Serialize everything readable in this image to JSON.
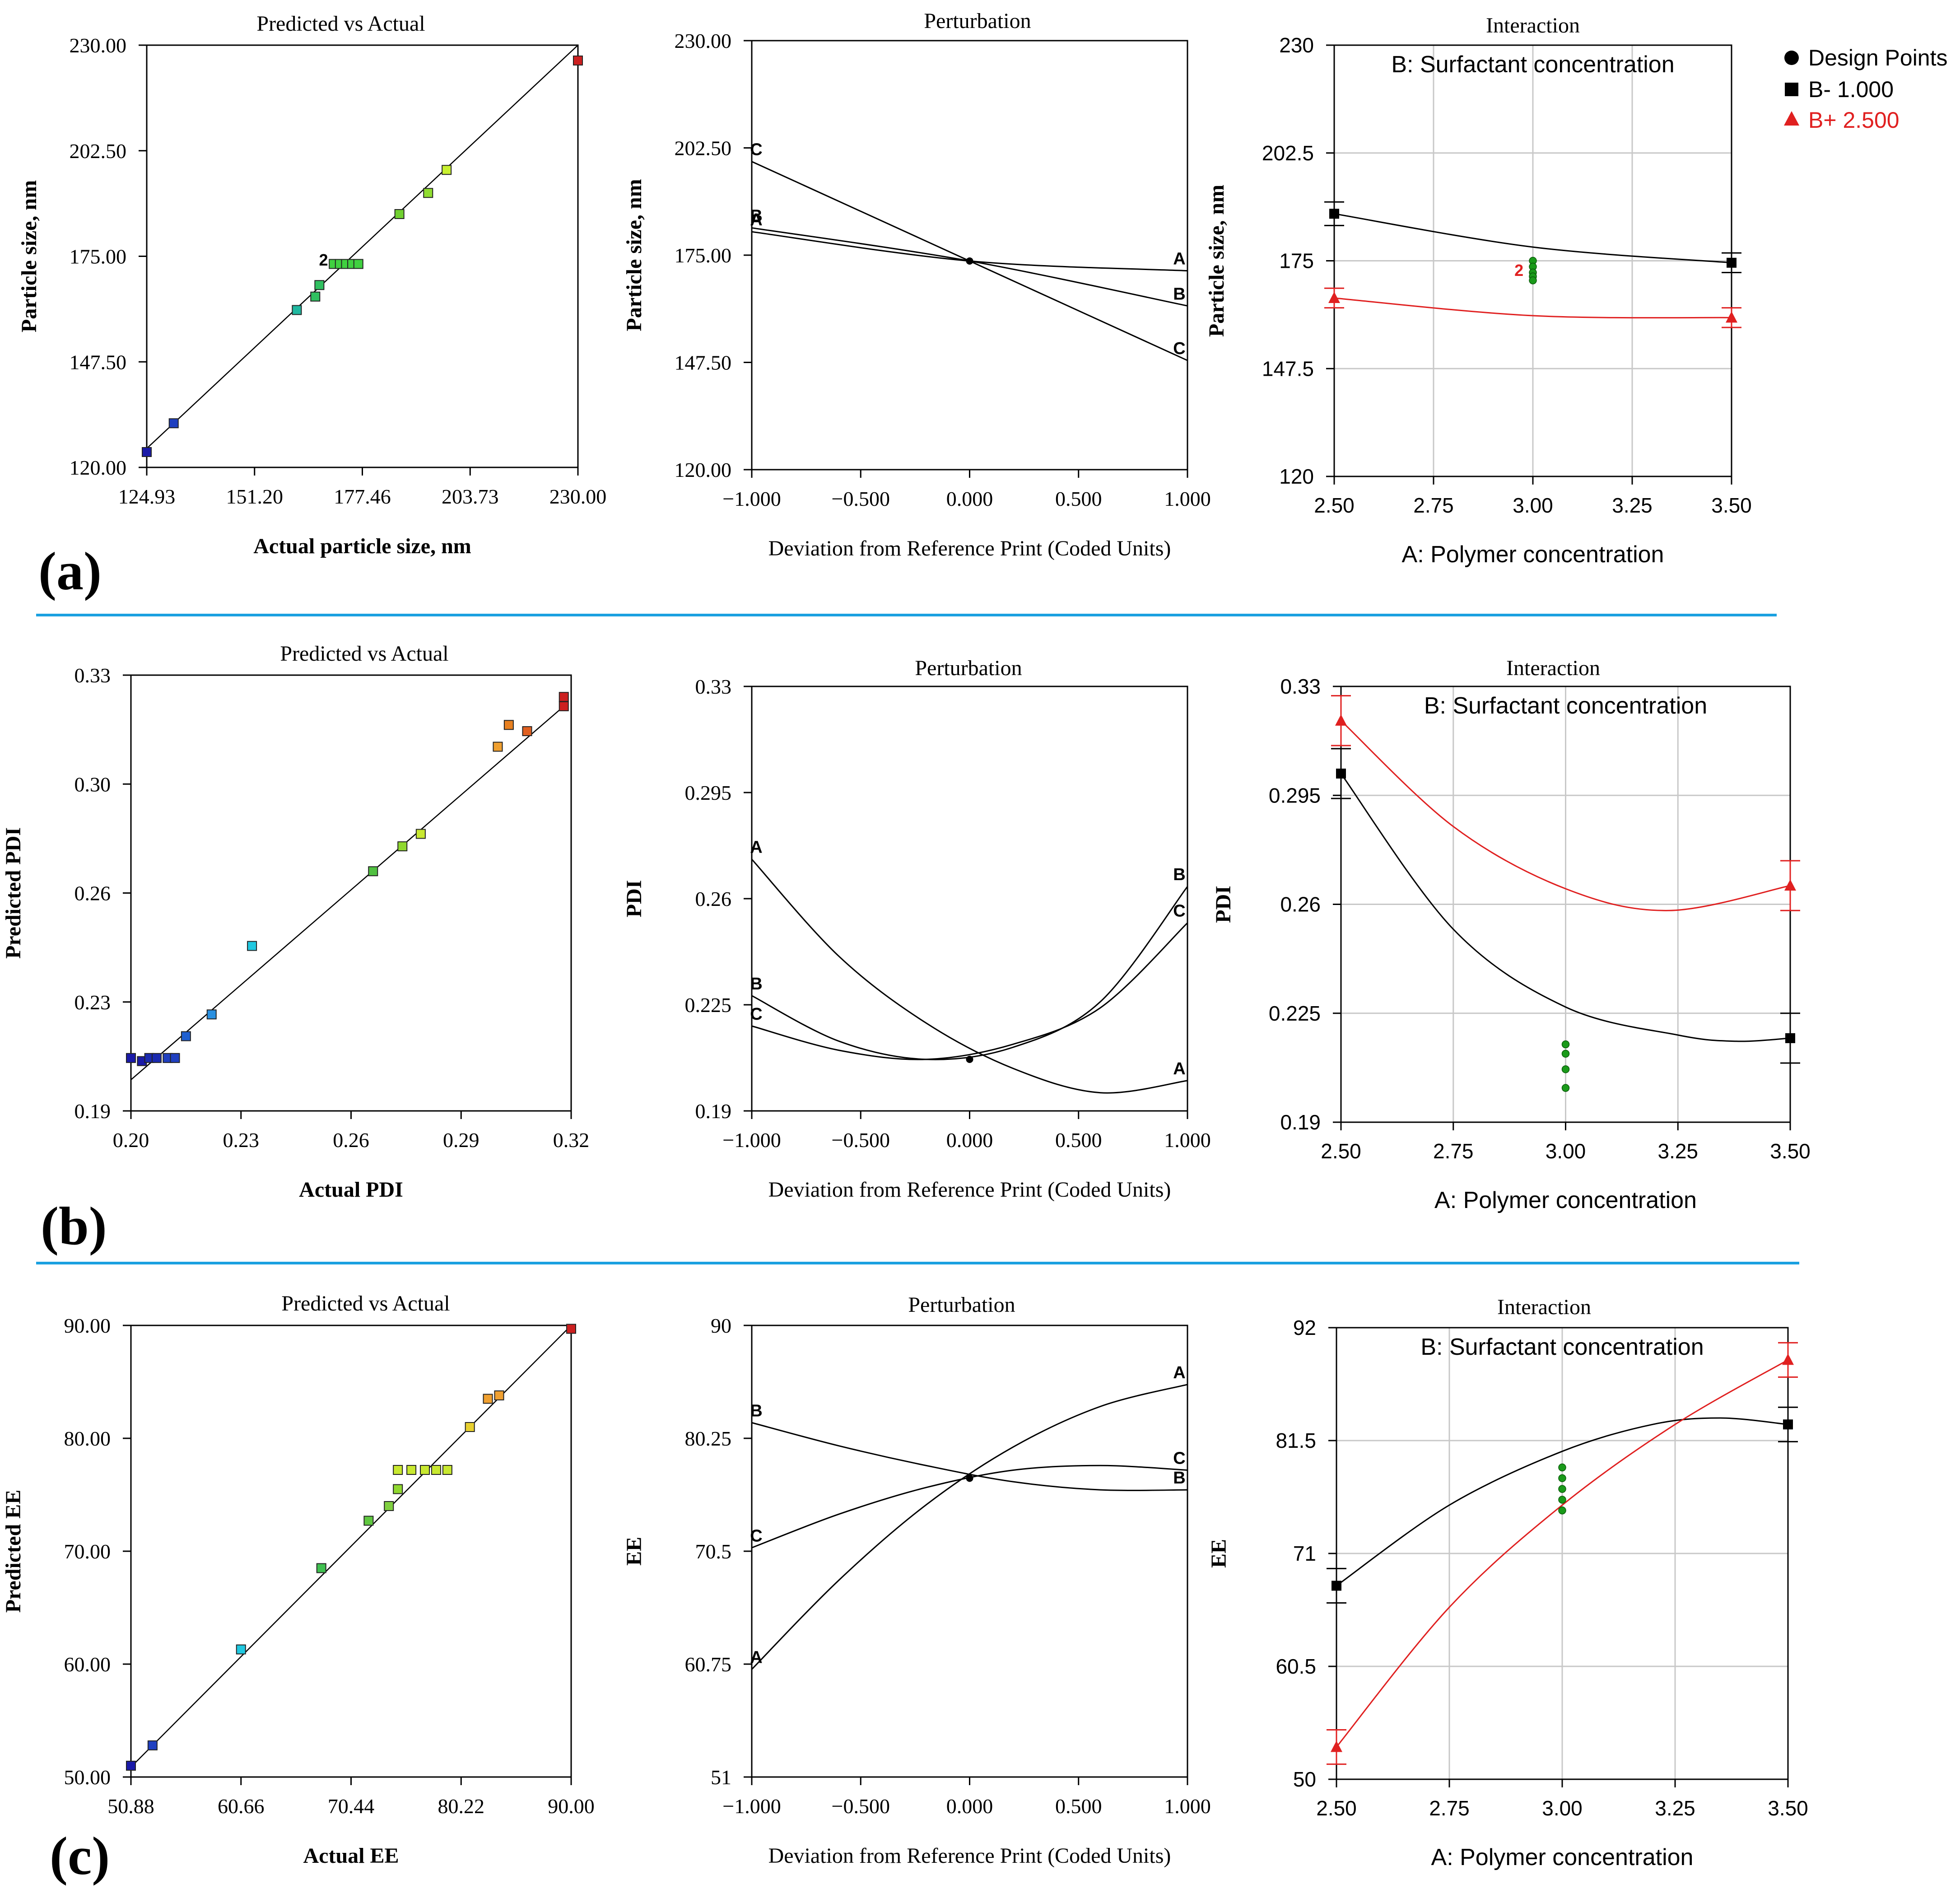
{
  "panel_labels": [
    "(a)",
    "(b)",
    "(c)"
  ],
  "legend": {
    "entries": [
      {
        "label": "Design Points",
        "color": "#000000",
        "marker": "circle"
      },
      {
        "label": "B- 1.000",
        "color": "#000000",
        "marker": "square"
      },
      {
        "label": "B+ 2.500",
        "color": "#e02020",
        "marker": "triangle"
      }
    ]
  },
  "chart_data": [
    {
      "id": "a-pva",
      "type": "scatter",
      "style": "pva",
      "title": "Predicted vs Actual",
      "xlabel": "Actual particle size, nm",
      "ylabel": "Particle size, nm",
      "xlim": [
        124.93,
        230.0
      ],
      "ylim": [
        120.0,
        230.0
      ],
      "xticks": [
        "124.93",
        "151.20",
        "177.46",
        "203.73",
        "230.00"
      ],
      "yticks": [
        "120.00",
        "147.50",
        "175.00",
        "202.50",
        "230.00"
      ],
      "line": [
        [
          124.93,
          124.93
        ],
        [
          230.0,
          230.0
        ]
      ],
      "points": [
        {
          "x": 124.93,
          "y": 124.0,
          "c": "#1a1aa8"
        },
        {
          "x": 131.5,
          "y": 131.5,
          "c": "#1f3fc0"
        },
        {
          "x": 161.5,
          "y": 161.0,
          "c": "#20b8a0"
        },
        {
          "x": 166.0,
          "y": 164.5,
          "c": "#30c060"
        },
        {
          "x": 167.0,
          "y": 167.5,
          "c": "#30c060"
        },
        {
          "x": 170.5,
          "y": 173.0,
          "c": "#40d040"
        },
        {
          "x": 172.0,
          "y": 173.0,
          "c": "#40d040"
        },
        {
          "x": 173.5,
          "y": 173.0,
          "c": "#40d040"
        },
        {
          "x": 175.0,
          "y": 173.0,
          "c": "#40d040"
        },
        {
          "x": 176.5,
          "y": 173.0,
          "c": "#40d040"
        },
        {
          "x": 186.5,
          "y": 186.0,
          "c": "#70d030"
        },
        {
          "x": 193.5,
          "y": 191.5,
          "c": "#90dd30"
        },
        {
          "x": 198.0,
          "y": 197.5,
          "c": "#c8f030"
        },
        {
          "x": 230.0,
          "y": 226.0,
          "c": "#cc2020"
        }
      ],
      "annotations": [
        {
          "text": "2",
          "x": 168.0,
          "y": 174.0
        }
      ]
    },
    {
      "id": "a-pert",
      "type": "line",
      "style": "pert",
      "title": "Perturbation",
      "xlabel": "Deviation from Reference Print (Coded Units)",
      "ylabel": "Particle size, nm",
      "xlim": [
        -1.0,
        1.0
      ],
      "ylim": [
        120.0,
        230.0
      ],
      "xticks": [
        "−1.000",
        "−0.500",
        "0.000",
        "0.500",
        "1.000"
      ],
      "yticks": [
        "120.00",
        "147.50",
        "175.00",
        "202.50",
        "230.00"
      ],
      "series": [
        {
          "name": "A",
          "x": [
            -1.0,
            0.0,
            1.0
          ],
          "y": [
            181.0,
            173.5,
            171.0
          ],
          "label_left": true,
          "label_right": true
        },
        {
          "name": "B",
          "x": [
            -1.0,
            0.0,
            1.0
          ],
          "y": [
            182.0,
            173.5,
            162.0
          ],
          "label_left": true,
          "label_right": true
        },
        {
          "name": "C",
          "x": [
            -1.0,
            0.0,
            1.0
          ],
          "y": [
            199.0,
            173.5,
            148.0
          ],
          "label_left": true,
          "label_right": true
        }
      ],
      "center": [
        0.0,
        173.5
      ]
    },
    {
      "id": "a-int",
      "type": "line",
      "style": "int",
      "title": "Interaction",
      "subtitle": "B: Surfactant concentration",
      "xlabel": "A: Polymer concentration",
      "ylabel": "Particle size, nm",
      "xlim": [
        2.5,
        3.5
      ],
      "ylim": [
        120.0,
        230.0
      ],
      "xticks": [
        "2.50",
        "2.75",
        "3.00",
        "3.25",
        "3.50"
      ],
      "yticks": [
        "120",
        "147.5",
        "175",
        "202.5",
        "230"
      ],
      "grid": true,
      "series": [
        {
          "name": "B- 1.000",
          "color": "#000000",
          "marker": "square",
          "x": [
            2.5,
            3.0,
            3.5
          ],
          "y": [
            187.0,
            178.5,
            174.5
          ],
          "ends": [
            [
              2.5,
              187.0,
              3.0
            ],
            [
              3.5,
              174.5,
              2.5
            ]
          ]
        },
        {
          "name": "B+ 2.500",
          "color": "#e02020",
          "marker": "triangle",
          "x": [
            2.5,
            3.0,
            3.5
          ],
          "y": [
            165.5,
            161.0,
            160.5
          ],
          "ends": [
            [
              2.5,
              165.5,
              2.5
            ],
            [
              3.5,
              160.5,
              2.5
            ]
          ]
        }
      ],
      "design_points": [
        [
          3.0,
          175.0
        ],
        [
          3.0,
          173.5
        ],
        [
          3.0,
          172.0
        ],
        [
          3.0,
          171.0
        ],
        [
          3.0,
          170.0
        ]
      ],
      "annotations": [
        {
          "text": "2",
          "x": 2.965,
          "y": 172.5,
          "color": "#e02020"
        }
      ]
    },
    {
      "id": "b-pva",
      "type": "scatter",
      "style": "pva",
      "title": "Predicted vs Actual",
      "xlabel": "Actual PDI",
      "ylabel": "Predicted PDI",
      "xlim": [
        0.2,
        0.32
      ],
      "ylim": [
        0.19,
        0.33
      ],
      "xticks": [
        "0.20",
        "0.23",
        "0.26",
        "0.29",
        "0.32"
      ],
      "yticks": [
        "0.19",
        "0.23",
        "0.26",
        "0.30",
        "0.33"
      ],
      "line": [
        [
          0.2,
          0.2
        ],
        [
          0.318,
          0.32
        ]
      ],
      "points": [
        {
          "x": 0.2,
          "y": 0.207,
          "c": "#1a1aa8"
        },
        {
          "x": 0.203,
          "y": 0.206,
          "c": "#1a1aa8"
        },
        {
          "x": 0.205,
          "y": 0.207,
          "c": "#1a2ab0"
        },
        {
          "x": 0.207,
          "y": 0.207,
          "c": "#1a2ab0"
        },
        {
          "x": 0.21,
          "y": 0.207,
          "c": "#2040c0"
        },
        {
          "x": 0.212,
          "y": 0.207,
          "c": "#2040c0"
        },
        {
          "x": 0.215,
          "y": 0.214,
          "c": "#2060d0"
        },
        {
          "x": 0.222,
          "y": 0.221,
          "c": "#2a90e0"
        },
        {
          "x": 0.233,
          "y": 0.243,
          "c": "#20c8e0"
        },
        {
          "x": 0.266,
          "y": 0.267,
          "c": "#50c040"
        },
        {
          "x": 0.274,
          "y": 0.275,
          "c": "#90d830"
        },
        {
          "x": 0.279,
          "y": 0.279,
          "c": "#c8e830"
        },
        {
          "x": 0.3,
          "y": 0.307,
          "c": "#f0a030"
        },
        {
          "x": 0.303,
          "y": 0.314,
          "c": "#e88020"
        },
        {
          "x": 0.308,
          "y": 0.312,
          "c": "#e06020"
        },
        {
          "x": 0.318,
          "y": 0.323,
          "c": "#cc2020"
        },
        {
          "x": 0.318,
          "y": 0.32,
          "c": "#cc2020"
        }
      ]
    },
    {
      "id": "b-pert",
      "type": "line",
      "style": "pert",
      "title": "Perturbation",
      "xlabel": "Deviation from Reference Print (Coded Units)",
      "ylabel": "PDI",
      "xlim": [
        -1.0,
        1.0
      ],
      "ylim": [
        0.19,
        0.33
      ],
      "xticks": [
        "−1.000",
        "−0.500",
        "0.000",
        "0.500",
        "1.000"
      ],
      "yticks": [
        "0.19",
        "0.225",
        "0.26",
        "0.295",
        "0.33"
      ],
      "series": [
        {
          "name": "A",
          "x": [
            -1.0,
            -0.6,
            -0.2,
            0.2,
            0.6,
            1.0
          ],
          "y": [
            0.273,
            0.241,
            0.219,
            0.204,
            0.196,
            0.2
          ],
          "label_left": true,
          "label_right": true
        },
        {
          "name": "B",
          "x": [
            -1.0,
            -0.6,
            -0.2,
            0.2,
            0.6,
            1.0
          ],
          "y": [
            0.228,
            0.213,
            0.207,
            0.211,
            0.226,
            0.264
          ],
          "label_left": true,
          "label_right": true
        },
        {
          "name": "C",
          "x": [
            -1.0,
            -0.6,
            -0.2,
            0.2,
            0.6,
            1.0
          ],
          "y": [
            0.218,
            0.21,
            0.207,
            0.212,
            0.224,
            0.252
          ],
          "label_left": true,
          "label_right": true
        }
      ],
      "center": [
        0.0,
        0.207
      ]
    },
    {
      "id": "b-int",
      "type": "line",
      "style": "int",
      "title": "Interaction",
      "subtitle": "B: Surfactant concentration",
      "xlabel": "A: Polymer concentration",
      "ylabel": "PDI",
      "xlim": [
        2.5,
        3.5
      ],
      "ylim": [
        0.19,
        0.33
      ],
      "xticks": [
        "2.50",
        "2.75",
        "3.00",
        "3.25",
        "3.50"
      ],
      "yticks": [
        "0.19",
        "0.225",
        "0.26",
        "0.295",
        "0.33"
      ],
      "grid": true,
      "series": [
        {
          "name": "B- 1.000",
          "color": "#000000",
          "marker": "square",
          "x": [
            2.5,
            2.75,
            3.0,
            3.25,
            3.38,
            3.5
          ],
          "y": [
            0.302,
            0.252,
            0.227,
            0.218,
            0.216,
            0.217
          ],
          "ends": [
            [
              2.5,
              0.302,
              0.008
            ],
            [
              3.5,
              0.217,
              0.008
            ]
          ]
        },
        {
          "name": "B+ 2.500",
          "color": "#e02020",
          "marker": "triangle",
          "x": [
            2.5,
            2.75,
            3.0,
            3.23,
            3.5
          ],
          "y": [
            0.319,
            0.285,
            0.265,
            0.258,
            0.266
          ],
          "ends": [
            [
              2.5,
              0.319,
              0.008
            ],
            [
              3.5,
              0.266,
              0.008
            ]
          ]
        }
      ],
      "design_points": [
        [
          3.0,
          0.215
        ],
        [
          3.0,
          0.212
        ],
        [
          3.0,
          0.207
        ],
        [
          3.0,
          0.201
        ]
      ]
    },
    {
      "id": "c-pva",
      "type": "scatter",
      "style": "pva",
      "title": "Predicted vs Actual",
      "xlabel": "Actual EE",
      "ylabel": "Predicted EE",
      "xlim": [
        50.88,
        90.0
      ],
      "ylim": [
        50.0,
        90.0
      ],
      "xticks": [
        "50.88",
        "60.66",
        "70.44",
        "80.22",
        "90.00"
      ],
      "yticks": [
        "50.00",
        "60.00",
        "70.00",
        "80.00",
        "90.00"
      ],
      "line": [
        [
          50.88,
          50.88
        ],
        [
          90.0,
          90.0
        ]
      ],
      "points": [
        {
          "x": 50.88,
          "y": 51.0,
          "c": "#1a1aa8"
        },
        {
          "x": 52.8,
          "y": 52.8,
          "c": "#2040c0"
        },
        {
          "x": 60.66,
          "y": 61.3,
          "c": "#20c8e0"
        },
        {
          "x": 67.8,
          "y": 68.5,
          "c": "#40c050"
        },
        {
          "x": 72.0,
          "y": 72.7,
          "c": "#60c840"
        },
        {
          "x": 73.8,
          "y": 74.0,
          "c": "#80d040"
        },
        {
          "x": 74.6,
          "y": 75.5,
          "c": "#90d830"
        },
        {
          "x": 74.6,
          "y": 77.2,
          "c": "#c8e830"
        },
        {
          "x": 75.8,
          "y": 77.2,
          "c": "#c8e830"
        },
        {
          "x": 77.0,
          "y": 77.2,
          "c": "#c8e830"
        },
        {
          "x": 78.0,
          "y": 77.2,
          "c": "#c8e830"
        },
        {
          "x": 79.0,
          "y": 77.2,
          "c": "#c8e830"
        },
        {
          "x": 81.0,
          "y": 81.0,
          "c": "#e8d030"
        },
        {
          "x": 82.6,
          "y": 83.5,
          "c": "#f0a030"
        },
        {
          "x": 83.6,
          "y": 83.8,
          "c": "#f0a030"
        },
        {
          "x": 90.0,
          "y": 89.7,
          "c": "#cc2020"
        }
      ]
    },
    {
      "id": "c-pert",
      "type": "line",
      "style": "pert",
      "title": "Perturbation",
      "xlabel": "Deviation from Reference Print (Coded Units)",
      "ylabel": "EE",
      "xlim": [
        -1.0,
        1.0
      ],
      "ylim": [
        51.0,
        90.0
      ],
      "xticks": [
        "−1.000",
        "−0.500",
        "0.000",
        "0.500",
        "1.000"
      ],
      "yticks": [
        "51",
        "60.75",
        "70.5",
        "80.25",
        "90"
      ],
      "series": [
        {
          "name": "A",
          "x": [
            -1.0,
            -0.6,
            -0.2,
            0.2,
            0.6,
            1.0
          ],
          "y": [
            60.3,
            68.0,
            74.5,
            79.5,
            83.0,
            84.9
          ],
          "label_left": true,
          "label_right": true
        },
        {
          "name": "B",
          "x": [
            -1.0,
            -0.6,
            -0.2,
            0.2,
            0.6,
            1.0
          ],
          "y": [
            81.6,
            79.6,
            77.9,
            76.5,
            75.8,
            75.8
          ],
          "label_left": true,
          "label_right": true
        },
        {
          "name": "C",
          "x": [
            -1.0,
            -0.6,
            -0.2,
            0.2,
            0.6,
            1.0
          ],
          "y": [
            70.8,
            73.7,
            76.0,
            77.5,
            77.9,
            77.5
          ],
          "label_left": true,
          "label_right": true
        }
      ],
      "center": [
        0.0,
        76.8
      ]
    },
    {
      "id": "c-int",
      "type": "line",
      "style": "int",
      "title": "Interaction",
      "subtitle": "B: Surfactant concentration",
      "xlabel": "A: Polymer concentration",
      "ylabel": "EE",
      "xlim": [
        2.5,
        3.5
      ],
      "ylim": [
        50.0,
        92.0
      ],
      "xticks": [
        "2.50",
        "2.75",
        "3.00",
        "3.25",
        "3.50"
      ],
      "yticks": [
        "50",
        "60.5",
        "71",
        "81.5",
        "92"
      ],
      "grid": true,
      "series": [
        {
          "name": "B- 1.000",
          "color": "#000000",
          "marker": "square",
          "x": [
            2.5,
            2.75,
            3.0,
            3.2,
            3.35,
            3.5
          ],
          "y": [
            68.0,
            75.5,
            80.5,
            83.0,
            83.6,
            83.0
          ],
          "ends": [
            [
              2.5,
              68.0,
              1.6
            ],
            [
              3.5,
              83.0,
              1.6
            ]
          ]
        },
        {
          "name": "B+ 2.500",
          "color": "#e02020",
          "marker": "triangle",
          "x": [
            2.5,
            2.75,
            3.0,
            3.25,
            3.5
          ],
          "y": [
            53.0,
            66.0,
            75.5,
            83.0,
            89.0
          ],
          "ends": [
            [
              2.5,
              53.0,
              1.6
            ],
            [
              3.5,
              89.0,
              1.6
            ]
          ]
        }
      ],
      "design_points": [
        [
          3.0,
          79.0
        ],
        [
          3.0,
          78.0
        ],
        [
          3.0,
          77.0
        ],
        [
          3.0,
          76.0
        ],
        [
          3.0,
          75.0
        ]
      ]
    }
  ]
}
